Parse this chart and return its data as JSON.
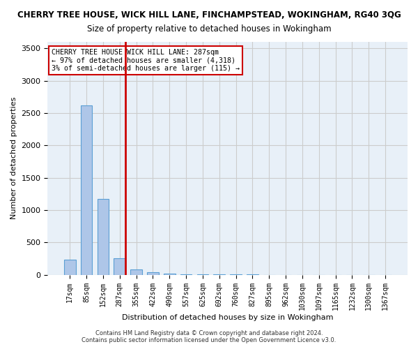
{
  "title_line1": "CHERRY TREE HOUSE, WICK HILL LANE, FINCHAMPSTEAD, WOKINGHAM, RG40 3QG",
  "title_line2": "Size of property relative to detached houses in Wokingham",
  "xlabel": "Distribution of detached houses by size in Wokingham",
  "ylabel": "Number of detached properties",
  "annotation_line1": "CHERRY TREE HOUSE WICK HILL LANE: 287sqm",
  "annotation_line2": "← 97% of detached houses are smaller (4,318)",
  "annotation_line3": "3% of semi-detached houses are larger (115) →",
  "property_line_x": 287,
  "bar_color": "#aec6e8",
  "bar_edge_color": "#5a9fd4",
  "annotation_box_color": "#ffffff",
  "annotation_box_edge": "#cc0000",
  "property_line_color": "#cc0000",
  "categories": [
    "17sqm",
    "85sqm",
    "152sqm",
    "287sqm",
    "355sqm",
    "422sqm",
    "490sqm",
    "557sqm",
    "625sqm",
    "692sqm",
    "760sqm",
    "827sqm",
    "895sqm",
    "962sqm",
    "1030sqm",
    "1097sqm",
    "1165sqm",
    "1232sqm",
    "1300sqm",
    "1367sqm"
  ],
  "values": [
    230,
    2620,
    1170,
    260,
    80,
    40,
    20,
    10,
    5,
    3,
    2,
    2,
    1,
    1,
    1,
    1,
    0,
    0,
    0,
    0
  ],
  "ylim": [
    0,
    3600
  ],
  "yticks": [
    0,
    500,
    1000,
    1500,
    2000,
    2500,
    3000,
    3500
  ],
  "grid_color": "#cccccc",
  "bg_color": "#e8f0f8",
  "footer_line1": "Contains HM Land Registry data © Crown copyright and database right 2024.",
  "footer_line2": "Contains public sector information licensed under the Open Government Licence v3.0."
}
